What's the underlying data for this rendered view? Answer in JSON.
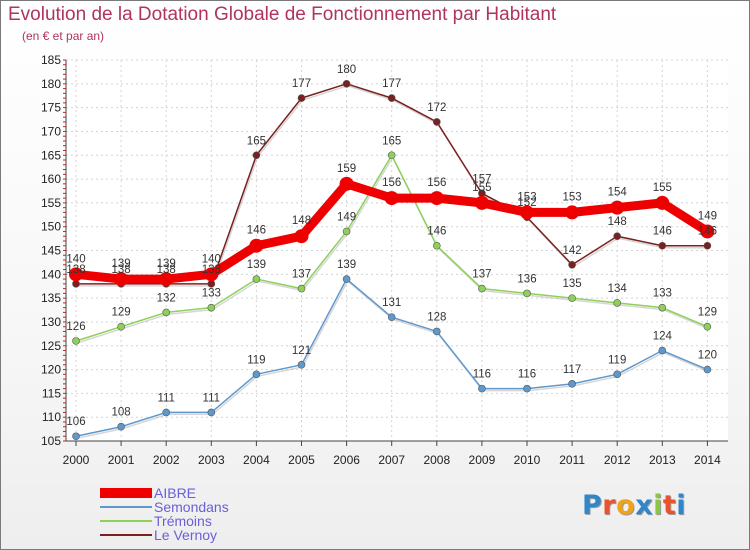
{
  "title": "Evolution de la Dotation Globale de Fonctionnement par Habitant",
  "subtitle": "(en € et par an)",
  "logo_text": "Proxiti",
  "chart_data": {
    "type": "line",
    "title": "Evolution de la Dotation Globale de Fonctionnement par Habitant",
    "subtitle": "(en € et par an)",
    "xlabel": "",
    "ylabel": "",
    "ylim": [
      105,
      185
    ],
    "yticks": [
      105,
      110,
      115,
      120,
      125,
      130,
      135,
      140,
      145,
      150,
      155,
      160,
      165,
      170,
      175,
      180,
      185
    ],
    "categories": [
      "2000",
      "2001",
      "2002",
      "2003",
      "2004",
      "2005",
      "2006",
      "2007",
      "2008",
      "2009",
      "2010",
      "2011",
      "2012",
      "2013",
      "2014"
    ],
    "legend_position": "bottom-left",
    "series": [
      {
        "name": "AIBRE",
        "color": "#ee0000",
        "values": [
          140,
          139,
          139,
          140,
          146,
          148,
          159,
          156,
          156,
          155,
          153,
          153,
          154,
          155,
          149
        ]
      },
      {
        "name": "Semondans",
        "color": "#5e98cc",
        "values": [
          106,
          108,
          111,
          111,
          119,
          121,
          139,
          131,
          128,
          116,
          116,
          117,
          119,
          124,
          120
        ]
      },
      {
        "name": "Trémoins",
        "color": "#8dd05a",
        "values": [
          126,
          129,
          132,
          133,
          139,
          137,
          149,
          165,
          146,
          137,
          136,
          135,
          134,
          133,
          129
        ]
      },
      {
        "name": "Le Vernoy",
        "color": "#7a2020",
        "values": [
          138,
          138,
          138,
          138,
          165,
          177,
          180,
          177,
          172,
          157,
          152,
          142,
          148,
          146,
          146
        ]
      }
    ]
  }
}
